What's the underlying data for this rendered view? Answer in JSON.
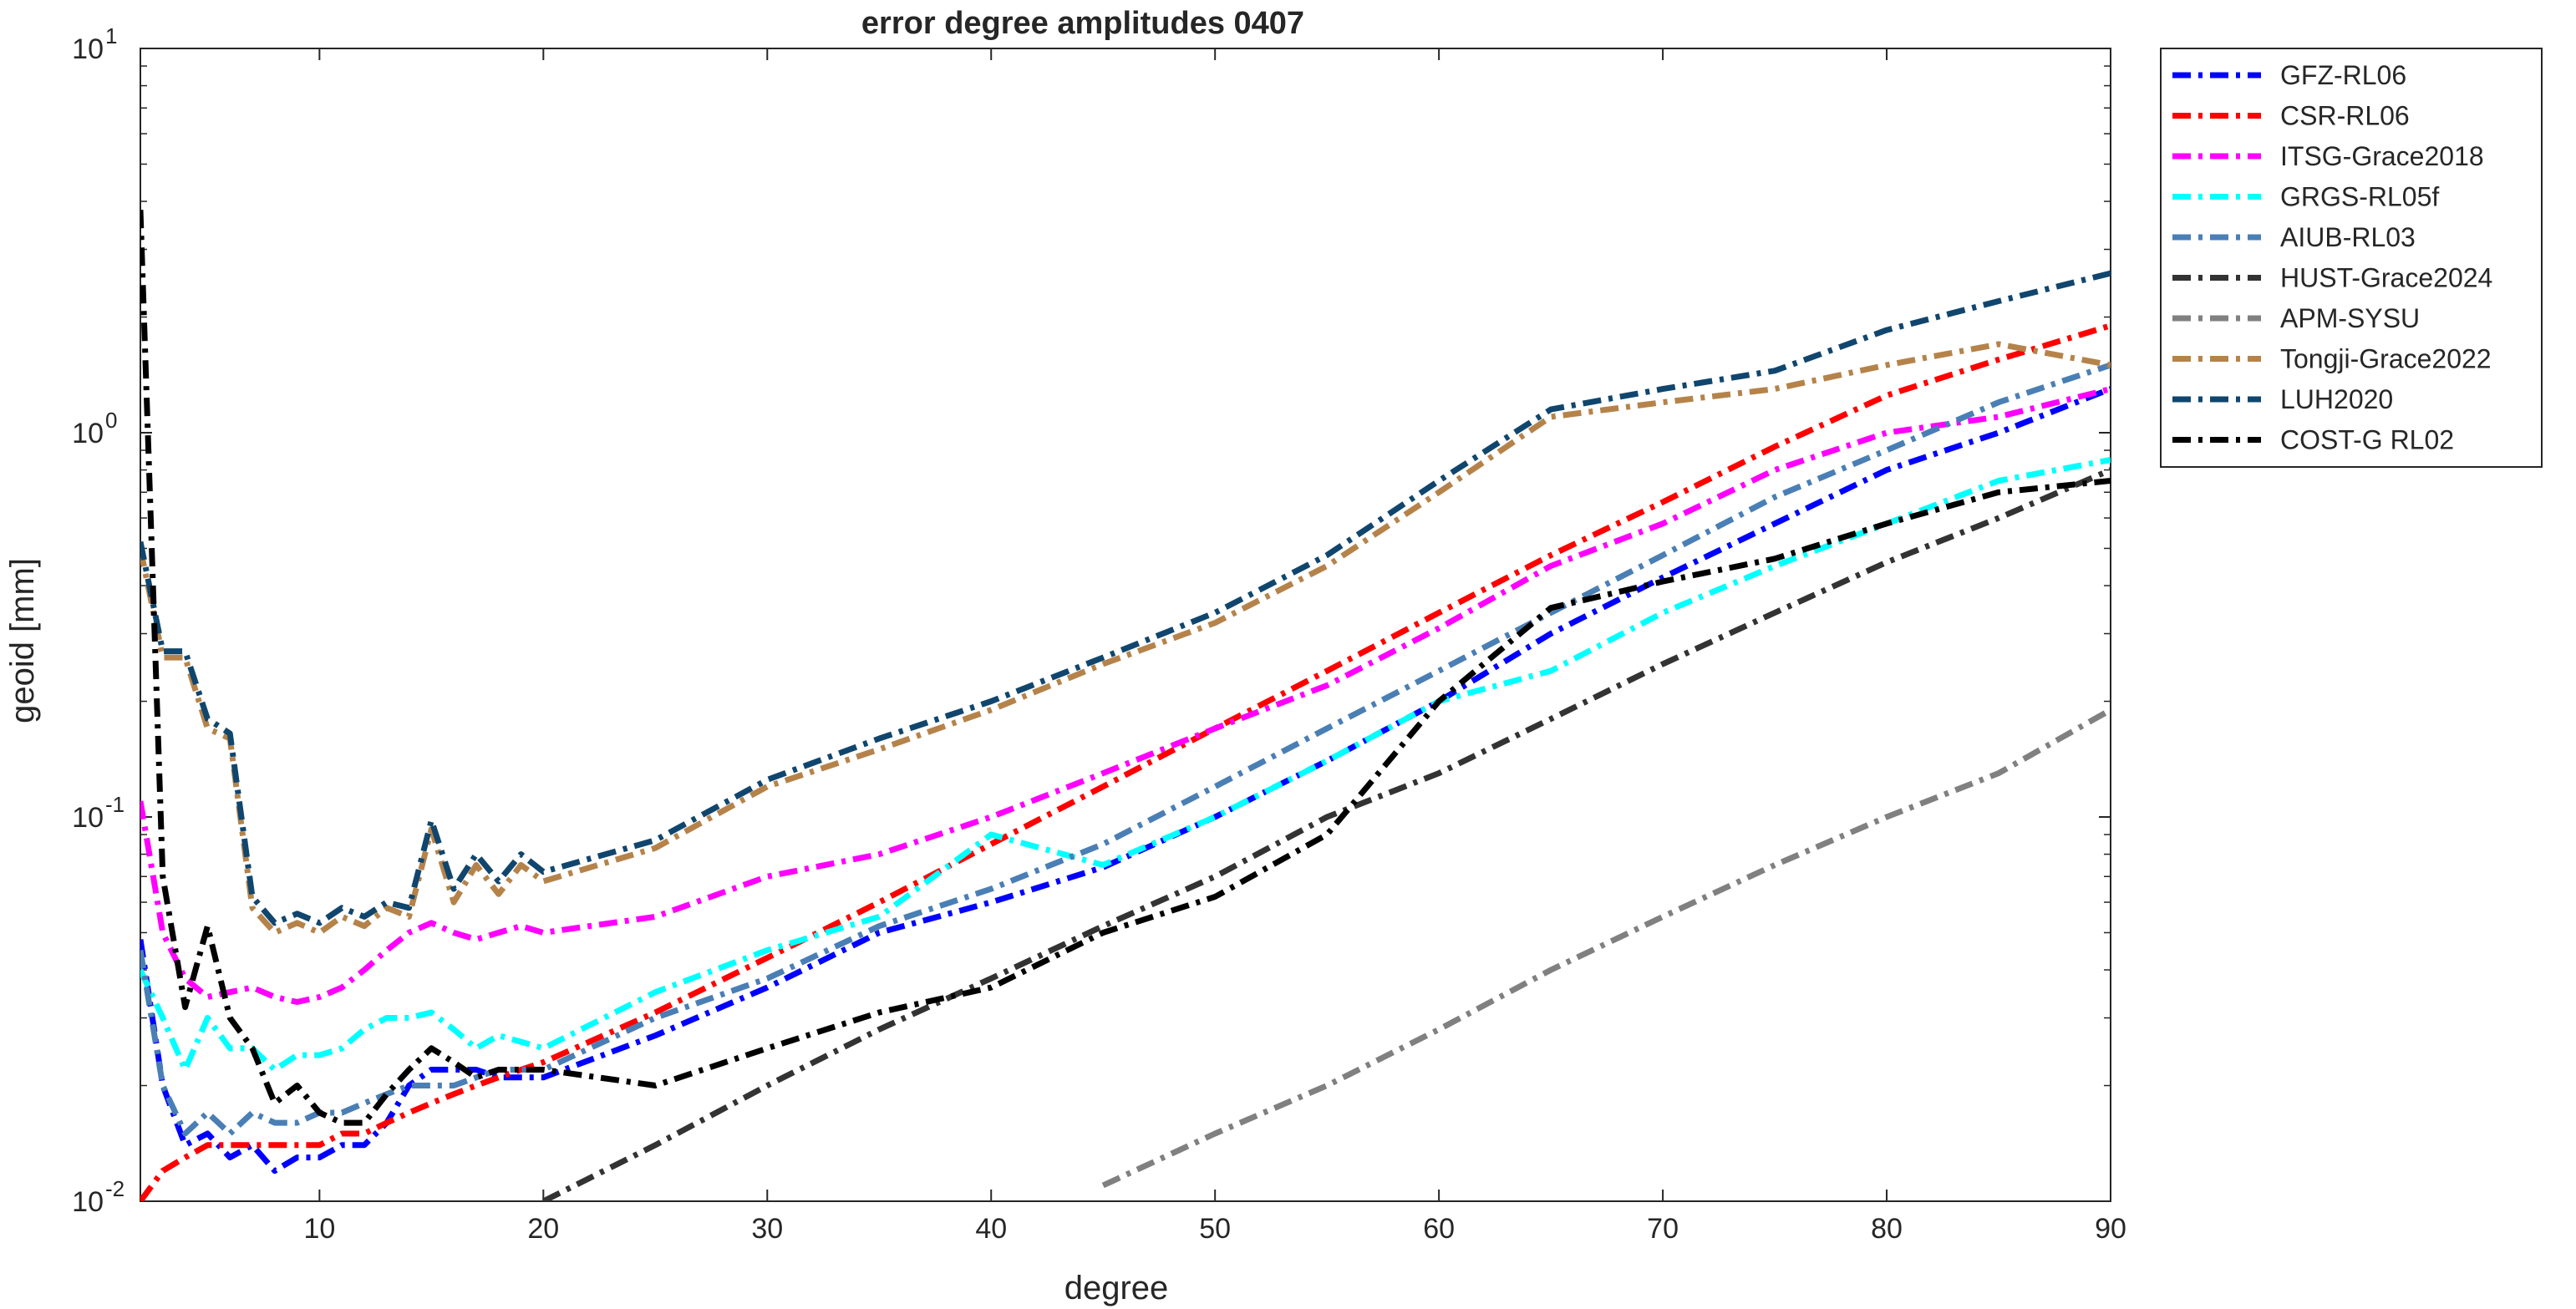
{
  "chart_data": {
    "type": "line",
    "title": "error degree amplitudes 0407",
    "xlabel": "degree",
    "ylabel": "geoid [mm]",
    "xlim": [
      2,
      90
    ],
    "ylim": [
      0.01,
      10
    ],
    "yscale": "log",
    "grid": false,
    "legend_position": "outside-top-right",
    "x_ticks": [
      10,
      20,
      30,
      40,
      50,
      60,
      70,
      80,
      90
    ],
    "y_ticks": [
      {
        "value": 0.01,
        "base": "10",
        "exp": "-2"
      },
      {
        "value": 0.1,
        "base": "10",
        "exp": "-1"
      },
      {
        "value": 1,
        "base": "10",
        "exp": "0"
      },
      {
        "value": 10,
        "base": "10",
        "exp": "1"
      }
    ],
    "x": [
      2,
      3,
      4,
      5,
      6,
      7,
      8,
      9,
      10,
      11,
      12,
      13,
      14,
      15,
      16,
      17,
      18,
      19,
      20,
      25,
      30,
      35,
      40,
      45,
      50,
      55,
      60,
      65,
      70,
      75,
      80,
      85,
      90
    ],
    "series": [
      {
        "name": "GFZ-RL06",
        "color": "#0000ff",
        "values": [
          0.048,
          0.02,
          0.014,
          0.015,
          0.013,
          0.014,
          0.012,
          0.013,
          0.013,
          0.014,
          0.014,
          0.016,
          0.02,
          0.022,
          0.022,
          0.022,
          0.021,
          0.021,
          0.021,
          0.027,
          0.036,
          0.05,
          0.06,
          0.074,
          0.1,
          0.14,
          0.2,
          0.3,
          0.42,
          0.58,
          0.8,
          1.0,
          1.3
        ]
      },
      {
        "name": "CSR-RL06",
        "color": "#ff0000",
        "values": [
          0.01,
          0.012,
          0.013,
          0.014,
          0.014,
          0.014,
          0.014,
          0.014,
          0.014,
          0.015,
          0.015,
          0.016,
          0.017,
          0.018,
          0.019,
          0.02,
          0.021,
          0.022,
          0.023,
          0.031,
          0.043,
          0.06,
          0.085,
          0.12,
          0.17,
          0.24,
          0.34,
          0.48,
          0.66,
          0.92,
          1.25,
          1.55,
          1.9
        ]
      },
      {
        "name": "ITSG-Grace2018",
        "color": "#ff00ff",
        "values": [
          0.11,
          0.05,
          0.038,
          0.034,
          0.035,
          0.036,
          0.034,
          0.033,
          0.034,
          0.036,
          0.04,
          0.045,
          0.05,
          0.053,
          0.05,
          0.048,
          0.05,
          0.052,
          0.05,
          0.055,
          0.07,
          0.08,
          0.1,
          0.13,
          0.17,
          0.22,
          0.31,
          0.45,
          0.58,
          0.8,
          1.0,
          1.1,
          1.3
        ]
      },
      {
        "name": "GRGS-RL05f",
        "color": "#00ffff",
        "values": [
          0.04,
          0.03,
          0.022,
          0.03,
          0.025,
          0.025,
          0.022,
          0.024,
          0.024,
          0.025,
          0.028,
          0.03,
          0.03,
          0.031,
          0.028,
          0.025,
          0.027,
          0.026,
          0.025,
          0.035,
          0.045,
          0.055,
          0.09,
          0.075,
          0.1,
          0.14,
          0.2,
          0.24,
          0.34,
          0.45,
          0.58,
          0.75,
          0.85
        ]
      },
      {
        "name": "AIUB-RL03",
        "color": "#4a7fb5",
        "values": [
          0.045,
          0.02,
          0.015,
          0.017,
          0.015,
          0.017,
          0.016,
          0.016,
          0.017,
          0.017,
          0.018,
          0.019,
          0.02,
          0.02,
          0.02,
          0.021,
          0.022,
          0.022,
          0.022,
          0.03,
          0.038,
          0.052,
          0.065,
          0.085,
          0.12,
          0.17,
          0.24,
          0.34,
          0.48,
          0.68,
          0.9,
          1.2,
          1.5
        ]
      },
      {
        "name": "HUST-Grace2024",
        "color": "#333333",
        "values": [
          null,
          null,
          null,
          null,
          null,
          null,
          null,
          null,
          null,
          null,
          null,
          null,
          null,
          null,
          null,
          null,
          null,
          null,
          0.01,
          0.014,
          0.02,
          0.028,
          0.038,
          0.052,
          0.07,
          0.1,
          0.13,
          0.18,
          0.25,
          0.34,
          0.46,
          0.6,
          0.8
        ]
      },
      {
        "name": "APM-SYSU",
        "color": "#808080",
        "values": [
          null,
          null,
          null,
          null,
          null,
          null,
          null,
          null,
          null,
          null,
          null,
          null,
          null,
          null,
          null,
          null,
          null,
          null,
          null,
          null,
          null,
          null,
          null,
          0.011,
          0.015,
          0.02,
          0.028,
          0.04,
          0.055,
          0.075,
          0.1,
          0.13,
          0.19
        ]
      },
      {
        "name": "Tongji-Grace2022",
        "color": "#b5834a",
        "values": [
          0.5,
          0.26,
          0.26,
          0.17,
          0.16,
          0.058,
          0.05,
          0.053,
          0.05,
          0.055,
          0.052,
          0.058,
          0.055,
          0.093,
          0.06,
          0.075,
          0.063,
          0.075,
          0.068,
          0.083,
          0.12,
          0.15,
          0.19,
          0.25,
          0.32,
          0.45,
          0.7,
          1.1,
          1.2,
          1.3,
          1.5,
          1.7,
          1.5
        ]
      },
      {
        "name": "LUH2020",
        "color": "#10466e",
        "values": [
          0.52,
          0.27,
          0.27,
          0.18,
          0.165,
          0.062,
          0.053,
          0.056,
          0.053,
          0.058,
          0.055,
          0.06,
          0.058,
          0.098,
          0.065,
          0.08,
          0.068,
          0.08,
          0.072,
          0.087,
          0.125,
          0.16,
          0.2,
          0.26,
          0.34,
          0.48,
          0.75,
          1.15,
          1.3,
          1.45,
          1.85,
          2.2,
          2.6
        ]
      },
      {
        "name": "COST-G RL02",
        "color": "#000000",
        "values": [
          3.8,
          0.07,
          0.032,
          0.052,
          0.03,
          0.025,
          0.018,
          0.02,
          0.017,
          0.016,
          0.016,
          0.019,
          0.022,
          0.025,
          0.023,
          0.021,
          0.022,
          0.022,
          0.022,
          0.02,
          0.025,
          0.031,
          0.036,
          0.05,
          0.062,
          0.09,
          0.2,
          0.35,
          0.41,
          0.47,
          0.58,
          0.7,
          0.75
        ]
      }
    ]
  }
}
